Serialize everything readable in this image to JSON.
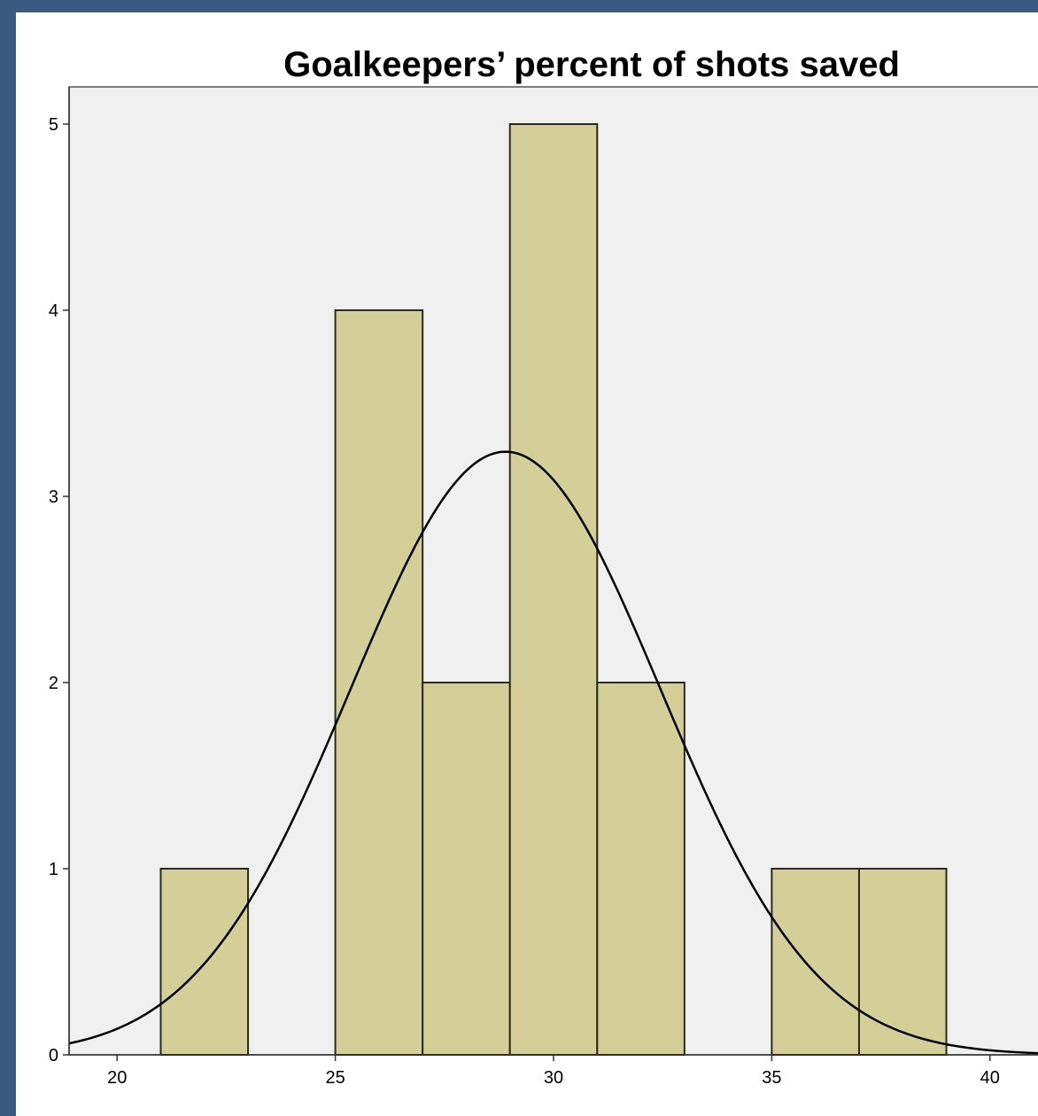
{
  "chart_data": {
    "type": "bar",
    "title": "Goalkeepers’ percent of shots saved",
    "xlabel": "",
    "ylabel": "",
    "bins": [
      {
        "start": 21,
        "end": 23,
        "count": 1
      },
      {
        "start": 25,
        "end": 27,
        "count": 4
      },
      {
        "start": 27,
        "end": 29,
        "count": 2
      },
      {
        "start": 29,
        "end": 31,
        "count": 5
      },
      {
        "start": 31,
        "end": 33,
        "count": 2
      },
      {
        "start": 35,
        "end": 37,
        "count": 1
      },
      {
        "start": 37,
        "end": 39,
        "count": 1
      }
    ],
    "xlim": [
      18.9,
      41.1
    ],
    "ylim": [
      0,
      5.2
    ],
    "xticks": [
      20,
      25,
      30,
      35,
      40
    ],
    "yticks": [
      0,
      1,
      2,
      3,
      4,
      5
    ],
    "normal_curve": {
      "mean": 28.9,
      "sd": 3.55,
      "peak": 3.24
    },
    "grid": false,
    "legend": "none",
    "colors": {
      "bar_fill": "#d4cf98",
      "bar_stroke": "#2a2a1a",
      "plot_background": "#f0f0f0",
      "curve": "#000000",
      "frame_border": "#3b5a82"
    }
  }
}
